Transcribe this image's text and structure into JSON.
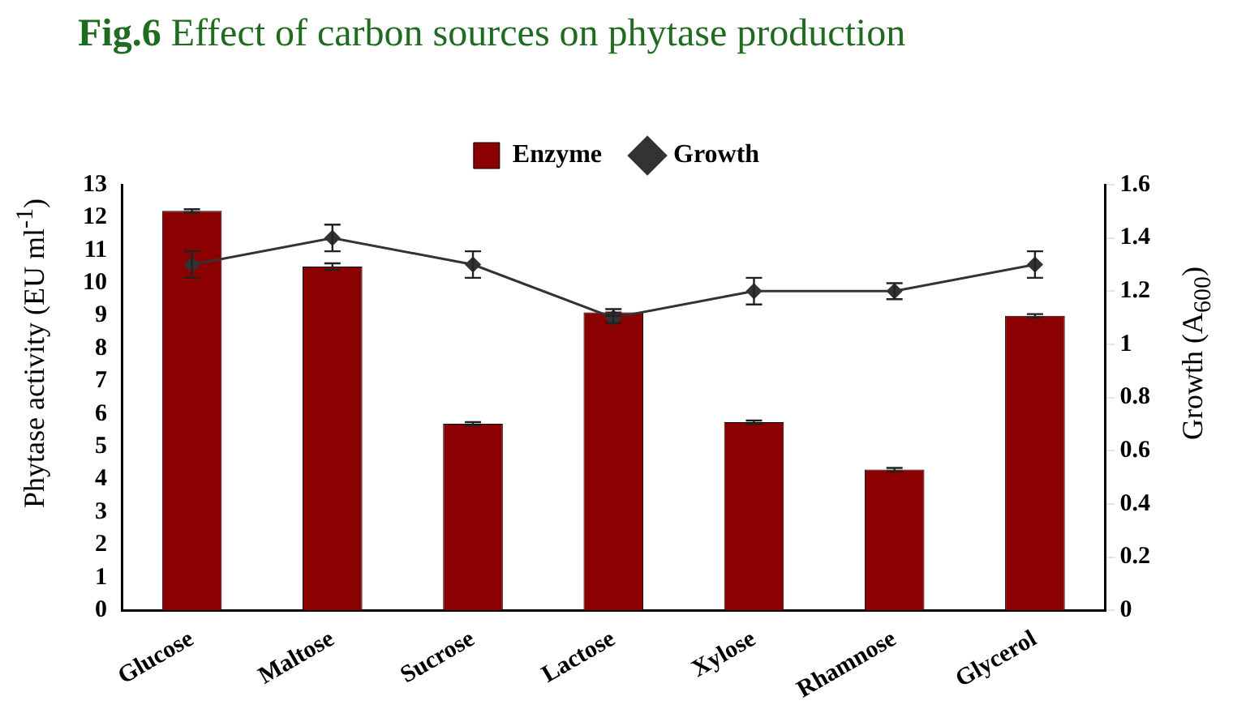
{
  "chart_data": {
    "type": "bar",
    "title": "Fig.6 Effect of carbon sources on phytase production",
    "ylabel": "Phytase activity (EU ml$^{-1}$)",
    "y2label": "Growth (A$_{600}$)",
    "categories": [
      "Glucose",
      "Maltose",
      "Sucrose",
      "Lactose",
      "Xylose",
      "Rhamnose",
      "Glycerol"
    ],
    "series": [
      {
        "name": "Enzyme",
        "color": "#8b0000",
        "values": [
          12.2,
          10.5,
          5.7,
          9.1,
          5.75,
          4.3,
          9.0
        ],
        "errors": [
          0.05,
          0.1,
          0.05,
          0.1,
          0.05,
          0.05,
          0.05
        ]
      },
      {
        "name": "Growth",
        "type": "line",
        "axis": "y2",
        "color": "#333333",
        "marker": "diamond",
        "values": [
          1.3,
          1.4,
          1.3,
          1.1,
          1.2,
          1.2,
          1.3
        ],
        "errors": [
          0.05,
          0.05,
          0.05,
          0.02,
          0.05,
          0.03,
          0.05
        ]
      }
    ],
    "ylim": [
      0,
      13
    ],
    "yticks": [
      0,
      1,
      2,
      3,
      4,
      5,
      6,
      7,
      8,
      9,
      10,
      11,
      12,
      13
    ],
    "y2lim": [
      0,
      1.6
    ],
    "y2ticks": [
      0,
      0.2,
      0.4,
      0.6,
      0.8,
      1,
      1.2,
      1.4,
      1.6
    ],
    "grid": false,
    "legend": "top"
  }
}
